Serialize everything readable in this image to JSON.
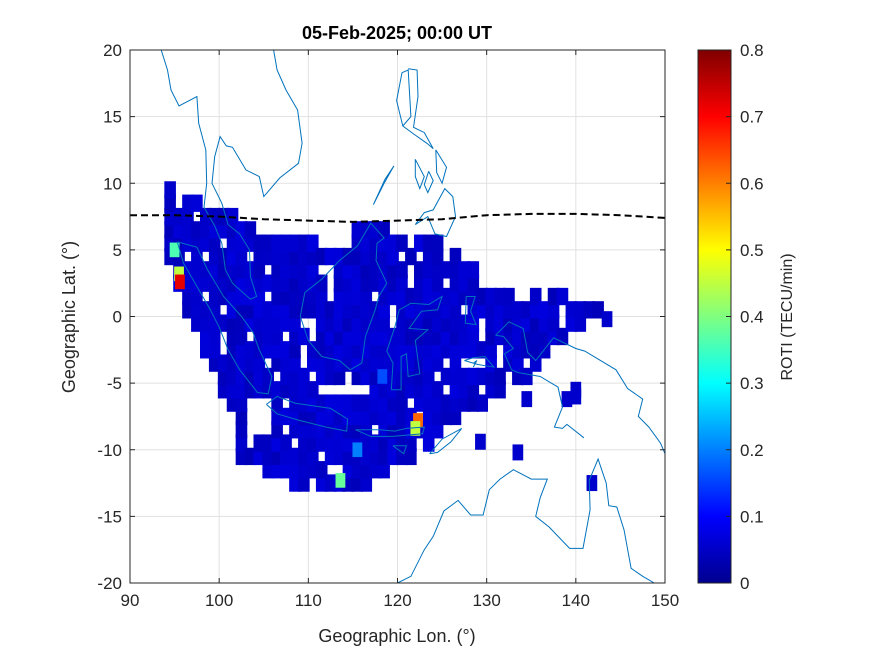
{
  "chart_data": {
    "type": "heatmap",
    "title": "05-Feb-2025; 00:00 UT",
    "xlabel": "Geographic Lon. (°)",
    "ylabel": "Geographic Lat. (°)",
    "xlim": [
      90,
      150
    ],
    "ylim": [
      -20,
      20
    ],
    "xticks": [
      90,
      100,
      110,
      120,
      130,
      140,
      150
    ],
    "xtick_labels": [
      "90",
      "100",
      "110",
      "120",
      "130",
      "140",
      "150"
    ],
    "yticks": [
      20,
      15,
      10,
      5,
      0,
      -5,
      -10,
      -15,
      -20
    ],
    "ytick_labels": [
      "20",
      "15",
      "10",
      "5",
      "0",
      "-5",
      "-10",
      "-15",
      "-20"
    ],
    "grid": true,
    "colorbar": {
      "label": "ROTI (TECU/min)",
      "range": [
        0,
        0.8
      ],
      "ticks": [
        0.8,
        0.7,
        0.6,
        0.5,
        0.4,
        0.3,
        0.2,
        0.1,
        0
      ],
      "tick_labels": [
        "0.8",
        "0.7",
        "0.6",
        "0.5",
        "0.4",
        "0.3",
        "0.2",
        "0.1",
        "0"
      ],
      "colormap": "jet"
    },
    "magnetic_equator": {
      "style": "dashed",
      "color": "#000000",
      "lon": [
        90,
        95,
        100,
        105,
        110,
        115,
        120,
        125,
        130,
        135,
        140,
        145,
        150
      ],
      "lat": [
        7.6,
        7.6,
        7.5,
        7.3,
        7.2,
        7.1,
        7.2,
        7.3,
        7.6,
        7.7,
        7.7,
        7.6,
        7.4
      ]
    },
    "coastline_color": "#0072bd",
    "background_roti": 0.06,
    "hotspots": [
      {
        "lon": 95.0,
        "lat": 5.0,
        "roti": 0.36
      },
      {
        "lon": 95.5,
        "lat": 3.2,
        "roti": 0.45
      },
      {
        "lon": 95.6,
        "lat": 2.6,
        "roti": 0.72
      },
      {
        "lon": 122.3,
        "lat": -7.8,
        "roti": 0.62
      },
      {
        "lon": 122.0,
        "lat": -8.4,
        "roti": 0.45
      },
      {
        "lon": 113.6,
        "lat": -12.3,
        "roti": 0.38
      },
      {
        "lon": 115.5,
        "lat": -10.0,
        "roti": 0.2
      },
      {
        "lon": 118.3,
        "lat": -4.5,
        "roti": 0.16
      }
    ]
  }
}
